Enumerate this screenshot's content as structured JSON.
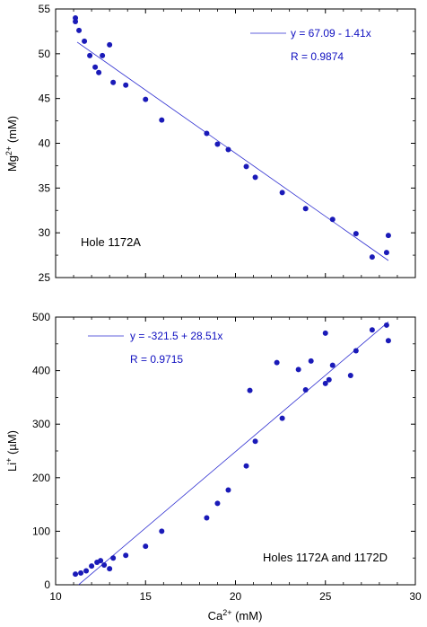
{
  "chart_data": [
    {
      "type": "scatter",
      "panel_label": "Hole 1172A",
      "xlim": [
        10,
        30
      ],
      "ylim": [
        25,
        55
      ],
      "xticks": [
        10,
        15,
        20,
        25,
        30
      ],
      "yticks": [
        25,
        30,
        35,
        40,
        45,
        50,
        55
      ],
      "ylabel": "Mg2+ (mM)",
      "equation": "y = 67.09 - 1.41x",
      "r_text": "R = 0.9874",
      "fit": {
        "intercept": 67.09,
        "slope": -1.41,
        "x_range": [
          11.2,
          28.5
        ]
      },
      "points": [
        {
          "x": 11.1,
          "y": 54.0
        },
        {
          "x": 11.1,
          "y": 53.6
        },
        {
          "x": 11.3,
          "y": 52.6
        },
        {
          "x": 11.6,
          "y": 51.4
        },
        {
          "x": 11.9,
          "y": 49.8
        },
        {
          "x": 12.2,
          "y": 48.5
        },
        {
          "x": 12.4,
          "y": 47.9
        },
        {
          "x": 12.6,
          "y": 49.8
        },
        {
          "x": 13.0,
          "y": 51.0
        },
        {
          "x": 13.2,
          "y": 46.8
        },
        {
          "x": 13.9,
          "y": 46.5
        },
        {
          "x": 15.0,
          "y": 44.9
        },
        {
          "x": 15.9,
          "y": 42.6
        },
        {
          "x": 18.4,
          "y": 41.1
        },
        {
          "x": 19.0,
          "y": 39.9
        },
        {
          "x": 19.6,
          "y": 39.3
        },
        {
          "x": 20.6,
          "y": 37.4
        },
        {
          "x": 21.1,
          "y": 36.2
        },
        {
          "x": 22.6,
          "y": 34.5
        },
        {
          "x": 23.9,
          "y": 32.7
        },
        {
          "x": 25.4,
          "y": 31.5
        },
        {
          "x": 26.7,
          "y": 29.9
        },
        {
          "x": 27.6,
          "y": 27.3
        },
        {
          "x": 28.4,
          "y": 27.8
        },
        {
          "x": 28.5,
          "y": 29.7
        }
      ]
    },
    {
      "type": "scatter",
      "panel_label": "Holes 1172A and 1172D",
      "xlim": [
        10,
        30
      ],
      "ylim": [
        0,
        500
      ],
      "xticks": [
        10,
        15,
        20,
        25,
        30
      ],
      "yticks": [
        0,
        100,
        200,
        300,
        400,
        500
      ],
      "xlabel": "Ca2+ (mM)",
      "ylabel": "Li+ (µM)",
      "equation": "y = -321.5 + 28.51x",
      "r_text": "R = 0.9715",
      "fit": {
        "intercept": -321.5,
        "slope": 28.51,
        "x_range": [
          11.28,
          28.5
        ]
      },
      "points": [
        {
          "x": 11.1,
          "y": 20
        },
        {
          "x": 11.4,
          "y": 22
        },
        {
          "x": 11.7,
          "y": 26
        },
        {
          "x": 12.0,
          "y": 35
        },
        {
          "x": 12.3,
          "y": 42
        },
        {
          "x": 12.5,
          "y": 45
        },
        {
          "x": 12.7,
          "y": 37
        },
        {
          "x": 13.0,
          "y": 30
        },
        {
          "x": 13.2,
          "y": 50
        },
        {
          "x": 13.9,
          "y": 55
        },
        {
          "x": 15.0,
          "y": 72
        },
        {
          "x": 15.9,
          "y": 100
        },
        {
          "x": 18.4,
          "y": 125
        },
        {
          "x": 19.0,
          "y": 152
        },
        {
          "x": 19.6,
          "y": 177
        },
        {
          "x": 20.6,
          "y": 222
        },
        {
          "x": 20.8,
          "y": 363
        },
        {
          "x": 21.1,
          "y": 268
        },
        {
          "x": 22.3,
          "y": 415
        },
        {
          "x": 22.6,
          "y": 311
        },
        {
          "x": 23.5,
          "y": 402
        },
        {
          "x": 23.9,
          "y": 364
        },
        {
          "x": 24.2,
          "y": 418
        },
        {
          "x": 25.0,
          "y": 470
        },
        {
          "x": 25.0,
          "y": 376
        },
        {
          "x": 25.2,
          "y": 383
        },
        {
          "x": 25.4,
          "y": 410
        },
        {
          "x": 26.4,
          "y": 391
        },
        {
          "x": 26.7,
          "y": 437
        },
        {
          "x": 27.6,
          "y": 476
        },
        {
          "x": 28.4,
          "y": 485
        },
        {
          "x": 28.5,
          "y": 456
        }
      ]
    }
  ],
  "colors": {
    "marker": "#1a1ab8",
    "fit_line": "#2b2bd0",
    "annotation": "#1010c0",
    "axes": "#000000"
  }
}
